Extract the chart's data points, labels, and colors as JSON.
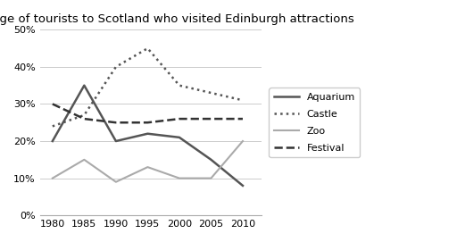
{
  "title": "Percentage of tourists to Scotland who visited Edinburgh attractions",
  "years": [
    1980,
    1985,
    1990,
    1995,
    2000,
    2005,
    2010
  ],
  "aquarium": [
    20,
    35,
    20,
    22,
    21,
    15,
    8
  ],
  "castle": [
    24,
    27,
    40,
    45,
    35,
    33,
    31
  ],
  "zoo": [
    10,
    15,
    9,
    13,
    10,
    10,
    20
  ],
  "festival": [
    30,
    26,
    25,
    25,
    26,
    26,
    26
  ],
  "aquarium_color": "#555555",
  "castle_color": "#555555",
  "zoo_color": "#aaaaaa",
  "festival_color": "#333333",
  "ylim": [
    0,
    50
  ],
  "yticks": [
    0,
    10,
    20,
    30,
    40,
    50
  ],
  "xticks": [
    1980,
    1985,
    1990,
    1995,
    2000,
    2005,
    2010
  ],
  "legend_labels": [
    "Aquarium",
    "Castle",
    "Zoo",
    "Festival"
  ],
  "background_color": "#ffffff",
  "title_fontsize": 9.5
}
